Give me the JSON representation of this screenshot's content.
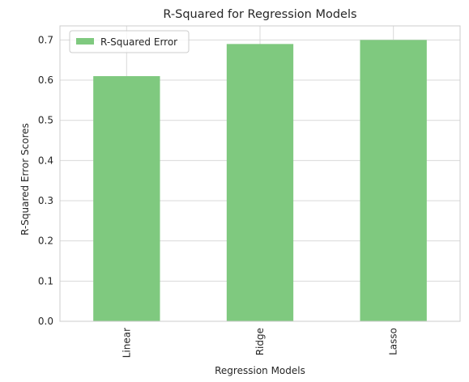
{
  "chart_data": {
    "type": "bar",
    "title": "R-Squared for Regression Models",
    "xlabel": "Regression Models",
    "ylabel": "R-Squared Error Scores",
    "categories": [
      "Linear",
      "Ridge",
      "Lasso"
    ],
    "series": [
      {
        "name": "R-Squared Error",
        "values": [
          0.61,
          0.69,
          0.7
        ]
      }
    ],
    "ylim": [
      0.0,
      0.735
    ],
    "yticks": [
      0.0,
      0.1,
      0.2,
      0.3,
      0.4,
      0.5,
      0.6,
      0.7
    ],
    "grid": true,
    "legend_position": "top-left",
    "colors": {
      "bar": "#7fc97f",
      "grid": "#d9d9d9",
      "axis": "#cccccc",
      "text": "#262626"
    }
  }
}
